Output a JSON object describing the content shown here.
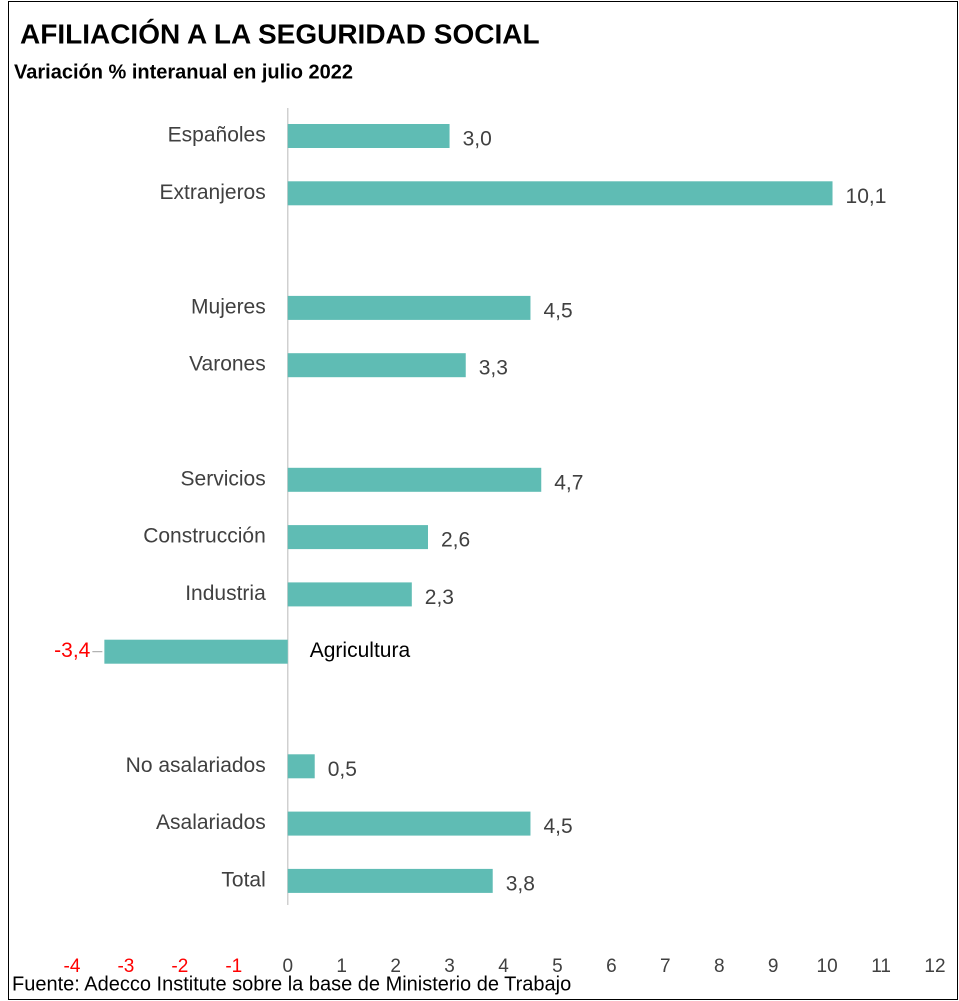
{
  "chart_data": {
    "type": "bar",
    "orientation": "horizontal",
    "title": "AFILIACIÓN A LA SEGURIDAD SOCIAL",
    "subtitle": "Variación % interanual en julio 2022",
    "source": "Fuente: Adecco Institute sobre la base de Ministerio de Trabajo",
    "categories": [
      "Españoles",
      "Extranjeros",
      null,
      "Mujeres",
      "Varones",
      null,
      "Servicios",
      "Construcción",
      "Industria",
      "Agricultura",
      null,
      "No asalariados",
      "Asalariados",
      "Total"
    ],
    "values": [
      3.0,
      10.1,
      null,
      4.5,
      3.3,
      null,
      4.7,
      2.6,
      2.3,
      -3.4,
      null,
      0.5,
      4.5,
      3.8
    ],
    "value_labels": [
      "3,0",
      "10,1",
      null,
      "4,5",
      "3,3",
      null,
      "4,7",
      "2,6",
      "2,3",
      "-3,4",
      null,
      "0,5",
      "4,5",
      "3,8"
    ],
    "color": "#5fbcb4",
    "negative_color": "#ff0000",
    "xlim": [
      -4,
      12
    ],
    "xticks": [
      -4,
      -3,
      -2,
      -1,
      0,
      1,
      2,
      3,
      4,
      5,
      6,
      7,
      8,
      9,
      10,
      11,
      12
    ]
  }
}
